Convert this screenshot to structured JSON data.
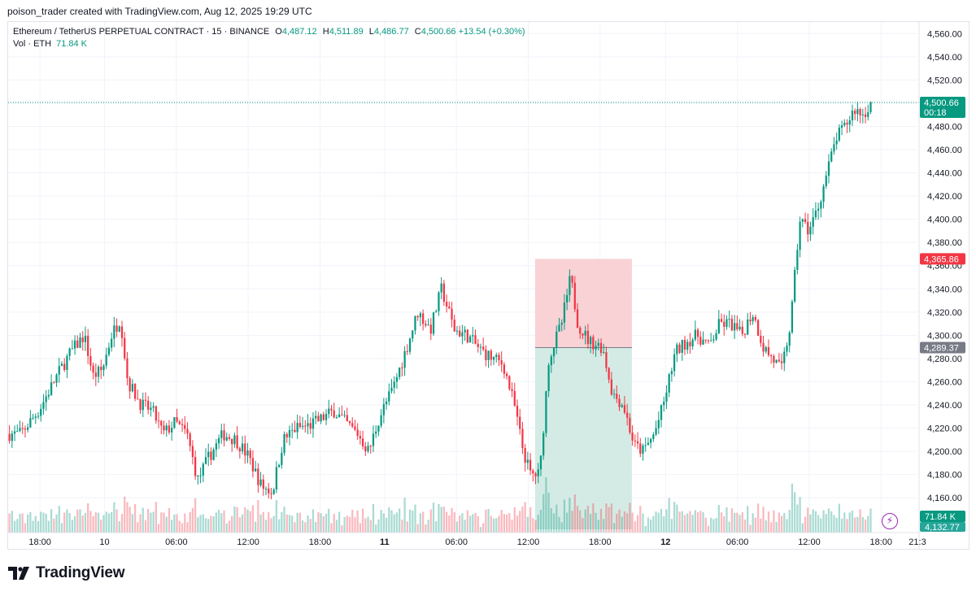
{
  "header": {
    "created_by": "poison_trader created with TradingView.com, Aug 12, 2025 19:29 UTC"
  },
  "legend": {
    "symbol": "Ethereum / TetherUS PERPETUAL CONTRACT · 15 · BINANCE",
    "open_label": "O",
    "open": "4,487.12",
    "high_label": "H",
    "high": "4,511.89",
    "low_label": "L",
    "low": "4,486.77",
    "close_label": "C",
    "close": "4,500.66",
    "change": "+13.54 (+0.30%)",
    "volume_label": "Vol · ETH",
    "volume": "71.84 K"
  },
  "brand": {
    "name": "TradingView"
  },
  "colors": {
    "up": "#089981",
    "down": "#f23645",
    "grid": "#f0f3fa",
    "axis_text": "#131722"
  },
  "chart_data": {
    "type": "candlestick",
    "symbol": "ETHUSDT.P",
    "interval": "15",
    "ylim": [
      4130,
      4570
    ],
    "y_ticks": [
      "4,160.00",
      "4,180.00",
      "4,200.00",
      "4,220.00",
      "4,240.00",
      "4,260.00",
      "4,280.00",
      "4,300.00",
      "4,320.00",
      "4,340.00",
      "4,360.00",
      "4,380.00",
      "4,400.00",
      "4,420.00",
      "4,440.00",
      "4,460.00",
      "4,480.00",
      "4,500.00",
      "4,520.00",
      "4,540.00",
      "4,560.00"
    ],
    "x_ticks": [
      {
        "label": "18:00",
        "t": 0.035,
        "bold": false
      },
      {
        "label": "10",
        "t": 0.106,
        "bold": false
      },
      {
        "label": "06:00",
        "t": 0.185,
        "bold": false
      },
      {
        "label": "12:00",
        "t": 0.264,
        "bold": false
      },
      {
        "label": "18:00",
        "t": 0.343,
        "bold": false
      },
      {
        "label": "11",
        "t": 0.414,
        "bold": true
      },
      {
        "label": "06:00",
        "t": 0.493,
        "bold": false
      },
      {
        "label": "12:00",
        "t": 0.572,
        "bold": false
      },
      {
        "label": "18:00",
        "t": 0.651,
        "bold": false
      },
      {
        "label": "12",
        "t": 0.723,
        "bold": true
      },
      {
        "label": "06:00",
        "t": 0.802,
        "bold": false
      },
      {
        "label": "12:00",
        "t": 0.881,
        "bold": false
      },
      {
        "label": "18:00",
        "t": 0.96,
        "bold": false
      },
      {
        "label": "21:3",
        "t": 1.0,
        "bold": false
      }
    ],
    "price_path": [
      [
        0.0,
        4215
      ],
      [
        0.015,
        4215
      ],
      [
        0.035,
        4235
      ],
      [
        0.055,
        4265
      ],
      [
        0.07,
        4285
      ],
      [
        0.085,
        4300
      ],
      [
        0.095,
        4265
      ],
      [
        0.105,
        4270
      ],
      [
        0.115,
        4300
      ],
      [
        0.125,
        4315
      ],
      [
        0.133,
        4260
      ],
      [
        0.148,
        4240
      ],
      [
        0.16,
        4235
      ],
      [
        0.172,
        4215
      ],
      [
        0.185,
        4225
      ],
      [
        0.198,
        4215
      ],
      [
        0.21,
        4175
      ],
      [
        0.222,
        4195
      ],
      [
        0.238,
        4215
      ],
      [
        0.252,
        4210
      ],
      [
        0.266,
        4195
      ],
      [
        0.28,
        4170
      ],
      [
        0.292,
        4165
      ],
      [
        0.304,
        4210
      ],
      [
        0.318,
        4220
      ],
      [
        0.332,
        4222
      ],
      [
        0.346,
        4228
      ],
      [
        0.36,
        4235
      ],
      [
        0.372,
        4225
      ],
      [
        0.386,
        4215
      ],
      [
        0.398,
        4200
      ],
      [
        0.41,
        4230
      ],
      [
        0.425,
        4255
      ],
      [
        0.44,
        4290
      ],
      [
        0.452,
        4320
      ],
      [
        0.466,
        4305
      ],
      [
        0.478,
        4340
      ],
      [
        0.492,
        4305
      ],
      [
        0.506,
        4300
      ],
      [
        0.52,
        4288
      ],
      [
        0.534,
        4280
      ],
      [
        0.546,
        4275
      ],
      [
        0.558,
        4240
      ],
      [
        0.568,
        4200
      ],
      [
        0.576,
        4180
      ],
      [
        0.586,
        4180
      ],
      [
        0.596,
        4280
      ],
      [
        0.61,
        4310
      ],
      [
        0.62,
        4350
      ],
      [
        0.628,
        4310
      ],
      [
        0.64,
        4295
      ],
      [
        0.655,
        4290
      ],
      [
        0.666,
        4250
      ],
      [
        0.678,
        4240
      ],
      [
        0.69,
        4205
      ],
      [
        0.7,
        4200
      ],
      [
        0.712,
        4215
      ],
      [
        0.722,
        4240
      ],
      [
        0.735,
        4285
      ],
      [
        0.748,
        4295
      ],
      [
        0.76,
        4300
      ],
      [
        0.772,
        4290
      ],
      [
        0.784,
        4310
      ],
      [
        0.796,
        4310
      ],
      [
        0.808,
        4300
      ],
      [
        0.82,
        4320
      ],
      [
        0.832,
        4290
      ],
      [
        0.842,
        4280
      ],
      [
        0.852,
        4270
      ],
      [
        0.862,
        4310
      ],
      [
        0.872,
        4400
      ],
      [
        0.882,
        4390
      ],
      [
        0.892,
        4410
      ],
      [
        0.902,
        4440
      ],
      [
        0.912,
        4470
      ],
      [
        0.922,
        4480
      ],
      [
        0.932,
        4495
      ],
      [
        0.942,
        4490
      ],
      [
        0.95,
        4500
      ]
    ],
    "candle_count": 330,
    "seed": 7,
    "last_price": {
      "label": "4,500.66",
      "countdown": "00:18",
      "value": 4500.66,
      "color": "#089981"
    },
    "short_position": {
      "x_start": 0.5795,
      "x_end": 0.686,
      "entry": 4289.37,
      "stop": 4365.86,
      "target": 4132.77,
      "entry_label": "4,289.37",
      "stop_label": "4,365.86",
      "target_label": "4,132.77",
      "risk_color": "#f7cdd0",
      "reward_color": "#cfe9e2"
    },
    "volume_axis_label": "71.84 K",
    "volume_max_frac": 0.28
  }
}
